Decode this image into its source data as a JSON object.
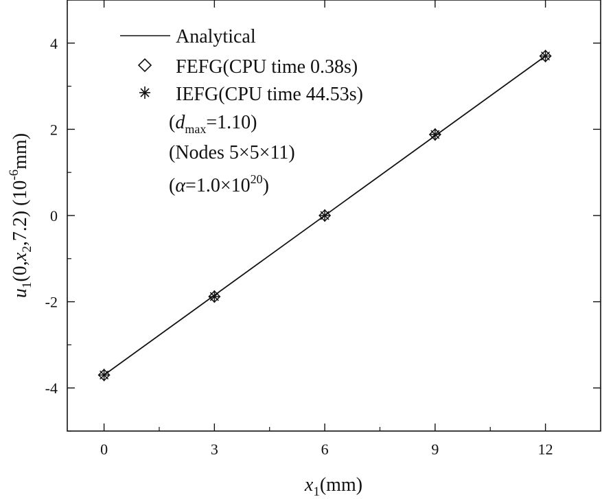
{
  "chart_data": {
    "type": "line",
    "title": "",
    "xlabel": {
      "var": "x",
      "sub": "1",
      "unit": "(mm)"
    },
    "ylabel": {
      "var": "u",
      "sub": "1",
      "args": "(0,",
      "arg_var": "x",
      "arg_sub": "2",
      "arg_tail": ",7.2) (10",
      "exp": "-6",
      "unit": "mm)"
    },
    "xlim": [
      -1.0,
      13.5
    ],
    "ylim": [
      -5.0,
      5.0
    ],
    "xticks": [
      0,
      3,
      6,
      9,
      12
    ],
    "xtick_labels": [
      "0",
      "3",
      "6",
      "9",
      "12"
    ],
    "yticks": [
      -4,
      -2,
      0,
      2,
      4
    ],
    "ytick_labels": [
      "-4",
      "-2",
      "0",
      "2",
      "4"
    ],
    "grid": false,
    "legend_position": "top-left",
    "series": [
      {
        "name": "Analytical",
        "style": "line",
        "x": [
          0,
          12
        ],
        "y": [
          -3.7,
          3.7
        ]
      },
      {
        "name": "FEFG(CPU time 0.38s)",
        "style": "diamond",
        "x": [
          0,
          3,
          6,
          9,
          12
        ],
        "y": [
          -3.7,
          -1.88,
          0.0,
          1.88,
          3.7
        ]
      },
      {
        "name": "IEFG(CPU time 44.53s)",
        "style": "asterisk",
        "x": [
          0,
          3,
          6,
          9,
          12
        ],
        "y": [
          -3.7,
          -1.88,
          0.0,
          1.88,
          3.7
        ]
      }
    ],
    "annotations": {
      "dmax": {
        "open": "(",
        "var": "d",
        "sub": "max",
        "value": "=1.10)"
      },
      "nodes": "(Nodes 5×5×11)",
      "alpha": {
        "open": "(",
        "var": "α",
        "value": "=1.0×10",
        "exp": "20",
        "close": ")"
      }
    },
    "colors": {
      "line": "#111111",
      "markers": "#111111"
    }
  }
}
